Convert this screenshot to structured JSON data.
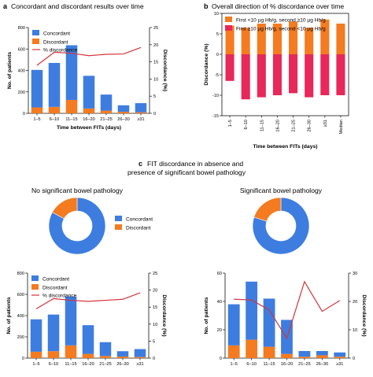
{
  "colors": {
    "concordant": "#3d7de0",
    "discordant": "#f47b20",
    "line": "#d5333b",
    "first_low": "#f47b20",
    "first_high": "#e8275a"
  },
  "panels": {
    "a": {
      "letter": "a",
      "title": "Concordant and discordant results over time"
    },
    "b": {
      "letter": "b",
      "title": "Overall direction of % discordance over time"
    },
    "c": {
      "letter": "c",
      "title_line1": "FIT discordance in absence and",
      "title_line2": "presence of significant bowel pathology",
      "left_heading": "No significant bowel pathology",
      "right_heading": "Significant bowel pathology"
    }
  },
  "chart_data": [
    {
      "id": "a",
      "type": "bar",
      "stacked": true,
      "categories": [
        "1–5",
        "6–10",
        "11–15",
        "16–20",
        "21–25",
        "26–30",
        "≥31"
      ],
      "series": [
        {
          "name": "Concordant",
          "values": [
            350,
            410,
            510,
            305,
            150,
            60,
            85
          ]
        },
        {
          "name": "Discordant",
          "values": [
            55,
            60,
            125,
            45,
            25,
            15,
            10
          ]
        }
      ],
      "line": {
        "name": "% discordance",
        "values": [
          14,
          17.8,
          17.5,
          16.8,
          17.2,
          17.3,
          19.2
        ]
      },
      "xlabel": "Time between FITs (days)",
      "ylabel": "No. of patients",
      "y2label": "Discordance (%)",
      "ylim": [
        0,
        800
      ],
      "yticks": [
        0,
        200,
        400,
        600,
        800
      ],
      "y2lim": [
        0,
        25
      ],
      "y2ticks": [
        0,
        5,
        10,
        15,
        20,
        25
      ],
      "legend_position": "top-left"
    },
    {
      "id": "b",
      "type": "bar",
      "categories": [
        "1–5",
        "6–10",
        "11–15",
        "16–20",
        "21–25",
        "26–30",
        "≥31",
        "Median"
      ],
      "series": [
        {
          "name": "First <10 µg Hb/g, second ≥10 µg Hb/g",
          "values": [
            7,
            6.5,
            7.5,
            7.5,
            8,
            6.5,
            8.5,
            7.5
          ]
        },
        {
          "name": "First ≥10 µg Hb/g, second <10 µg Hb/g",
          "values": [
            -6.5,
            -11,
            -10.5,
            -10,
            -9.5,
            -10.5,
            -10,
            -10
          ]
        }
      ],
      "ylabel": "Discordance (%)",
      "xlabel": "Time between FITs (days)",
      "ylim": [
        -15,
        10
      ],
      "yticks": [
        -15,
        -10,
        -5,
        0,
        5,
        10
      ],
      "legend_position": "top"
    },
    {
      "id": "c-pie-left",
      "type": "pie",
      "donut": true,
      "labels": [
        "Concordant",
        "Discordant"
      ],
      "values": [
        83,
        17
      ]
    },
    {
      "id": "c-pie-right",
      "type": "pie",
      "donut": true,
      "labels": [
        "Concordant",
        "Discordant"
      ],
      "values": [
        80,
        20
      ]
    },
    {
      "id": "c-left",
      "type": "bar",
      "stacked": true,
      "categories": [
        "1–5",
        "6–10",
        "11–15",
        "16–20",
        "21–25",
        "26–30",
        "≥31"
      ],
      "series": [
        {
          "name": "Concordant",
          "values": [
            305,
            345,
            460,
            270,
            130,
            50,
            75
          ]
        },
        {
          "name": "Discordant",
          "values": [
            60,
            65,
            120,
            40,
            20,
            15,
            10
          ]
        }
      ],
      "line": {
        "name": "% discordance",
        "values": [
          14.5,
          17.5,
          17,
          16.7,
          17,
          17.3,
          19.2
        ]
      },
      "ylabel": "No. of patients",
      "y2label": "Discordance (%)",
      "ylim": [
        0,
        800
      ],
      "yticks": [
        0,
        200,
        400,
        600,
        800
      ],
      "y2lim": [
        0,
        25
      ],
      "y2ticks": [
        0,
        5,
        10,
        15,
        20,
        25
      ],
      "legend_position": "top-left"
    },
    {
      "id": "c-right",
      "type": "bar",
      "stacked": true,
      "categories": [
        "1–5",
        "6–10",
        "11–15",
        "16–20",
        "21–25",
        "26–30",
        "≥31"
      ],
      "series": [
        {
          "name": "Concordant",
          "values": [
            29,
            41,
            34,
            24,
            4,
            3,
            3
          ]
        },
        {
          "name": "Discordant",
          "values": [
            9,
            13,
            8,
            3,
            1,
            2,
            1
          ]
        }
      ],
      "line": {
        "name": "% discordance",
        "values": [
          20.8,
          20.5,
          17,
          7,
          27,
          16.5,
          20.3
        ]
      },
      "ylabel": "No. of patients",
      "y2label": "Discordance (%)",
      "ylim": [
        0,
        60
      ],
      "yticks": [
        0,
        20,
        40,
        60
      ],
      "y2lim": [
        0,
        30
      ],
      "y2ticks": [
        0,
        10,
        20,
        30
      ]
    }
  ]
}
